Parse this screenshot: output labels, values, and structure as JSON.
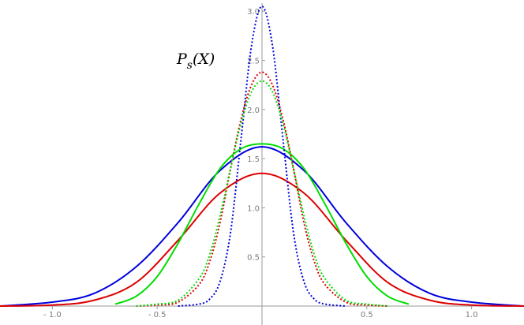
{
  "chart_data": {
    "type": "line",
    "title": "",
    "xlabel": "",
    "ylabel": "",
    "annotation": {
      "symbol": "P",
      "subscript": "s",
      "argument": "(X)"
    },
    "xlim": [
      -1.25,
      1.25
    ],
    "ylim": [
      0,
      3.05
    ],
    "x_ticks": [
      -1.0,
      -0.5,
      0.5,
      1.0
    ],
    "x_tick_labels": [
      "- 1.0",
      "- 0.5",
      "0.5",
      "1.0"
    ],
    "y_ticks": [
      0.5,
      1.0,
      1.5,
      2.0,
      2.5,
      3.0
    ],
    "y_tick_labels": [
      "0.5",
      "1.0",
      "1.5",
      "2.0",
      "2.5",
      "3.0"
    ],
    "grid": false,
    "series": [
      {
        "color": "#0000dd",
        "style": "solid",
        "x": [
          -1.25,
          -1.0,
          -0.8,
          -0.6,
          -0.4,
          -0.2,
          0.0,
          0.2,
          0.4,
          0.6,
          0.8,
          1.0,
          1.25
        ],
        "y": [
          0.0,
          0.04,
          0.13,
          0.4,
          0.85,
          1.38,
          1.62,
          1.38,
          0.85,
          0.4,
          0.13,
          0.04,
          0.0
        ]
      },
      {
        "color": "#dd0000",
        "style": "solid",
        "x": [
          -1.25,
          -1.0,
          -0.8,
          -0.6,
          -0.4,
          -0.2,
          0.0,
          0.2,
          0.4,
          0.6,
          0.8,
          1.0,
          1.25
        ],
        "y": [
          0.0,
          0.01,
          0.06,
          0.24,
          0.67,
          1.15,
          1.35,
          1.15,
          0.67,
          0.24,
          0.06,
          0.01,
          0.0
        ]
      },
      {
        "color": "#00dd00",
        "style": "solid",
        "x": [
          -0.7,
          -0.6,
          -0.5,
          -0.4,
          -0.3,
          -0.2,
          -0.1,
          0.0,
          0.1,
          0.2,
          0.3,
          0.4,
          0.5,
          0.6,
          0.7
        ],
        "y": [
          0.02,
          0.1,
          0.3,
          0.64,
          1.04,
          1.4,
          1.6,
          1.65,
          1.6,
          1.4,
          1.04,
          0.64,
          0.3,
          0.1,
          0.02
        ]
      },
      {
        "color": "#0000dd",
        "style": "dotted",
        "x": [
          -0.4,
          -0.3,
          -0.25,
          -0.2,
          -0.15,
          -0.1,
          -0.05,
          0.0,
          0.05,
          0.1,
          0.15,
          0.2,
          0.25,
          0.3,
          0.4
        ],
        "y": [
          0.0,
          0.02,
          0.07,
          0.25,
          0.75,
          1.7,
          2.65,
          3.05,
          2.65,
          1.7,
          0.75,
          0.25,
          0.07,
          0.02,
          0.0
        ]
      },
      {
        "color": "#dd0000",
        "style": "dotted",
        "x": [
          -0.6,
          -0.5,
          -0.4,
          -0.3,
          -0.25,
          -0.2,
          -0.15,
          -0.1,
          -0.05,
          0.0,
          0.05,
          0.1,
          0.15,
          0.2,
          0.25,
          0.3,
          0.4,
          0.5,
          0.6
        ],
        "y": [
          0.0,
          0.01,
          0.04,
          0.22,
          0.45,
          0.85,
          1.4,
          1.9,
          2.25,
          2.38,
          2.25,
          1.9,
          1.4,
          0.85,
          0.45,
          0.22,
          0.04,
          0.01,
          0.0
        ]
      },
      {
        "color": "#00dd00",
        "style": "dotted",
        "x": [
          -0.6,
          -0.5,
          -0.4,
          -0.3,
          -0.25,
          -0.2,
          -0.15,
          -0.1,
          -0.05,
          0.0,
          0.05,
          0.1,
          0.15,
          0.2,
          0.25,
          0.3,
          0.4,
          0.5,
          0.6
        ],
        "y": [
          0.0,
          0.02,
          0.06,
          0.28,
          0.52,
          0.92,
          1.4,
          1.86,
          2.18,
          2.29,
          2.18,
          1.86,
          1.4,
          0.92,
          0.52,
          0.28,
          0.06,
          0.02,
          0.0
        ]
      }
    ]
  }
}
